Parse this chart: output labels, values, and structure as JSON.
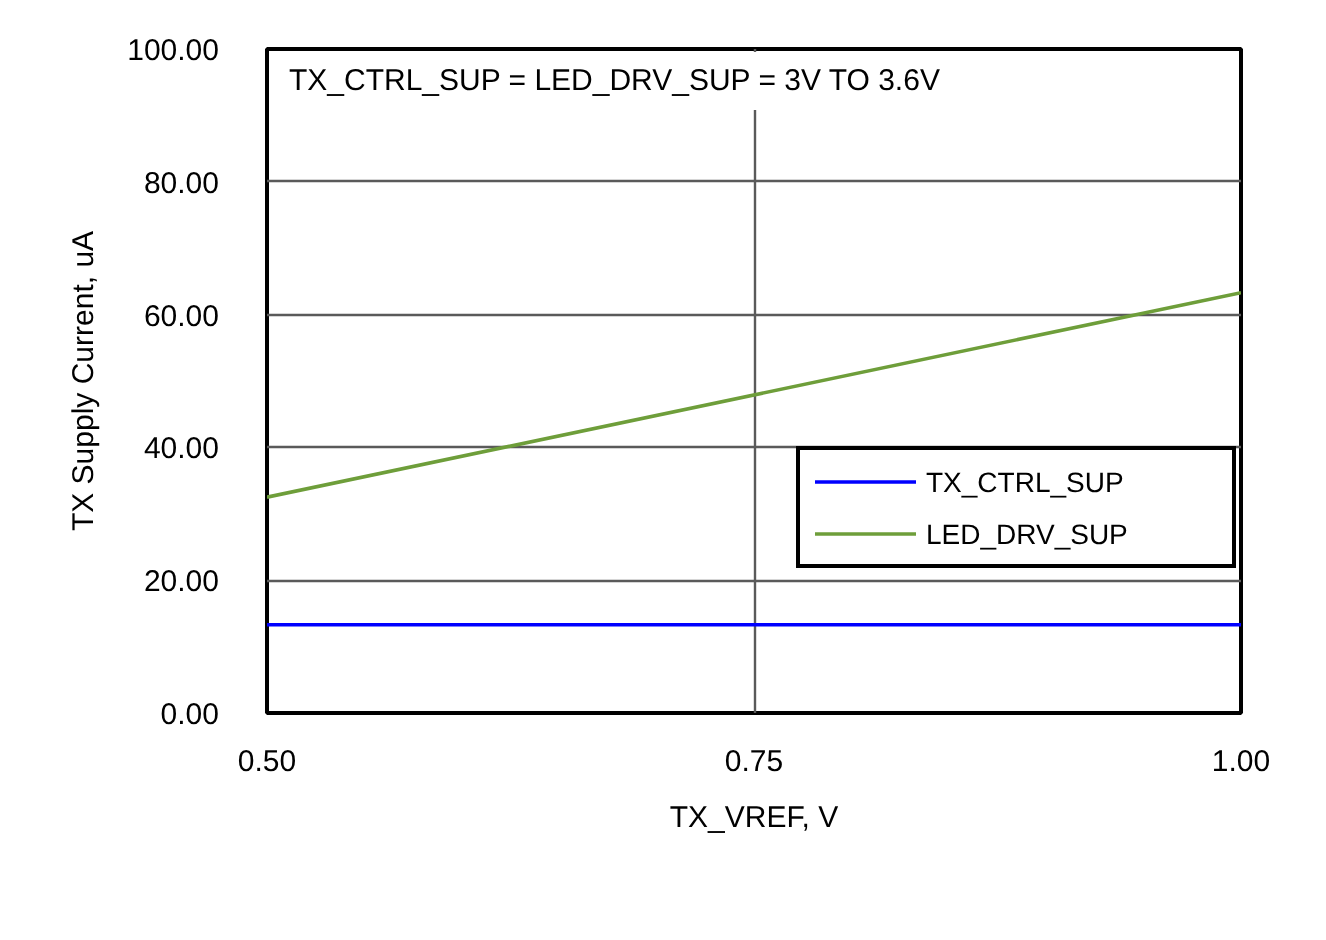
{
  "chart_data": {
    "type": "line",
    "x": [
      0.5,
      1.0
    ],
    "series": [
      {
        "name": "TX_CTRL_SUP",
        "color": "#0000ff",
        "values": [
          13.3,
          13.3
        ]
      },
      {
        "name": "LED_DRV_SUP",
        "color": "#6e9e3a",
        "values": [
          32.5,
          63.3
        ]
      }
    ],
    "xlabel": "TX_VREF, V",
    "ylabel": "TX Supply Current, uA",
    "annotations": [
      "TX_CTRL_SUP = LED_DRV_SUP = 3V TO 3.6V"
    ],
    "xlim": [
      0.5,
      1.0
    ],
    "ylim": [
      0,
      100
    ],
    "xticks": [
      {
        "value": 0.5,
        "label": "0.50"
      },
      {
        "value": 0.75,
        "label": "0.75"
      },
      {
        "value": 1.0,
        "label": "1.00"
      }
    ],
    "yticks": [
      {
        "value": 0,
        "label": "0.00"
      },
      {
        "value": 20,
        "label": "20.00"
      },
      {
        "value": 40,
        "label": "40.00"
      },
      {
        "value": 60,
        "label": "60.00"
      },
      {
        "value": 80,
        "label": "80.00"
      },
      {
        "value": 100,
        "label": "100.00"
      }
    ],
    "grid": true,
    "legend": "bottom right",
    "line_style": "solid"
  }
}
